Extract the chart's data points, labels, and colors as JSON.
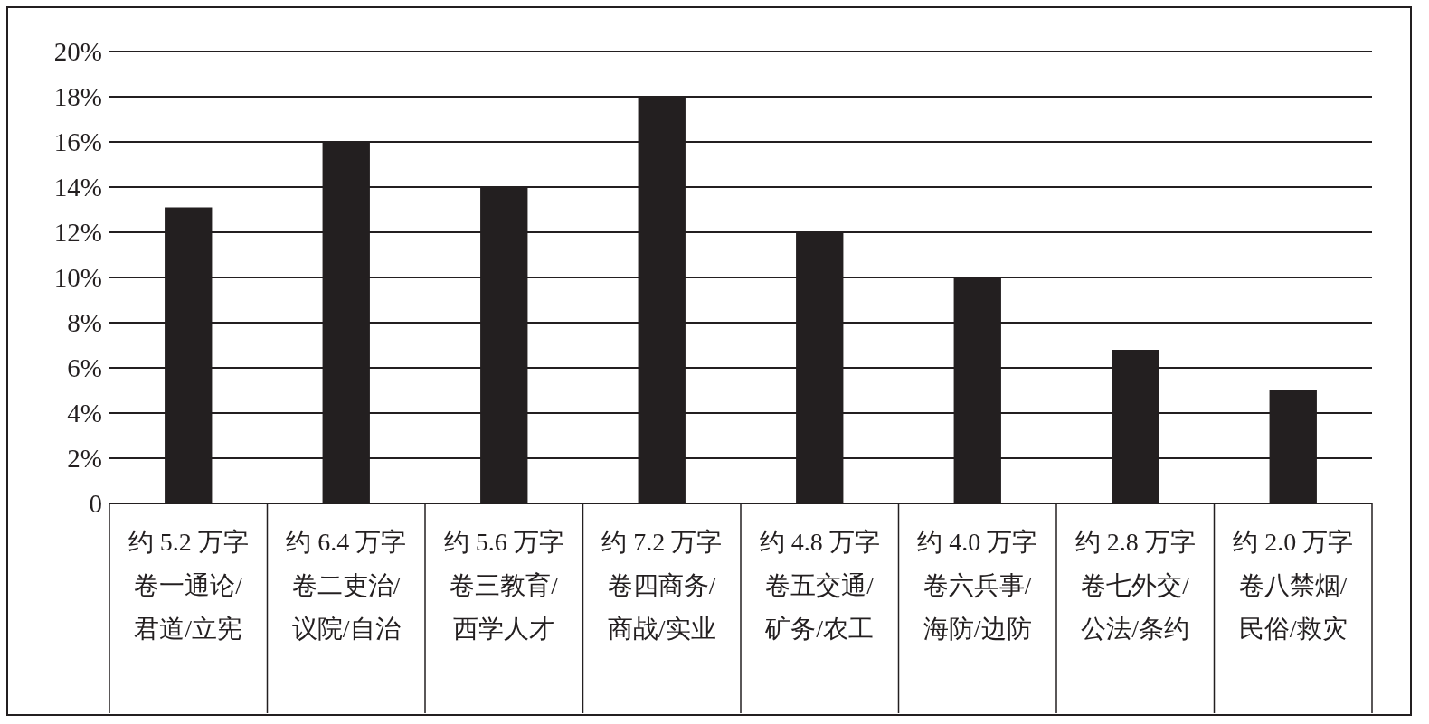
{
  "chart_data": {
    "type": "bar",
    "categories": [
      "约 5.2 万字卷一通论/君道/立宪",
      "约 6.4 万字卷二吏治/议院/自治",
      "约 5.6 万字卷三教育/西学人才",
      "约 7.2 万字卷四商务/商战/实业",
      "约 4.8 万字卷五交通/矿务/农工",
      "约 4.0 万字卷六兵事/海防/边防",
      "约 2.8 万字卷七外交/公法/条约",
      "约 2.0 万字卷八禁烟/民俗/救灾"
    ],
    "values": [
      13.1,
      16,
      14,
      18,
      12,
      10,
      6.8,
      5.0
    ],
    "color": "#231f20",
    "ylim": [
      0,
      20
    ],
    "yticks": [
      0,
      {
        "value": 2,
        "label": "2%"
      },
      {
        "value": 4,
        "label": "4%"
      },
      {
        "value": 6,
        "label": "6%"
      },
      {
        "value": 8,
        "label": "8%"
      },
      {
        "value": 10,
        "label": "10%"
      },
      {
        "value": 12,
        "label": "12%"
      },
      {
        "value": 14,
        "label": "14%"
      },
      {
        "value": 16,
        "label": "16%"
      },
      {
        "value": 18,
        "label": "18%"
      },
      {
        "value": 20,
        "label": "20%"
      }
    ],
    "grid": "y"
  }
}
